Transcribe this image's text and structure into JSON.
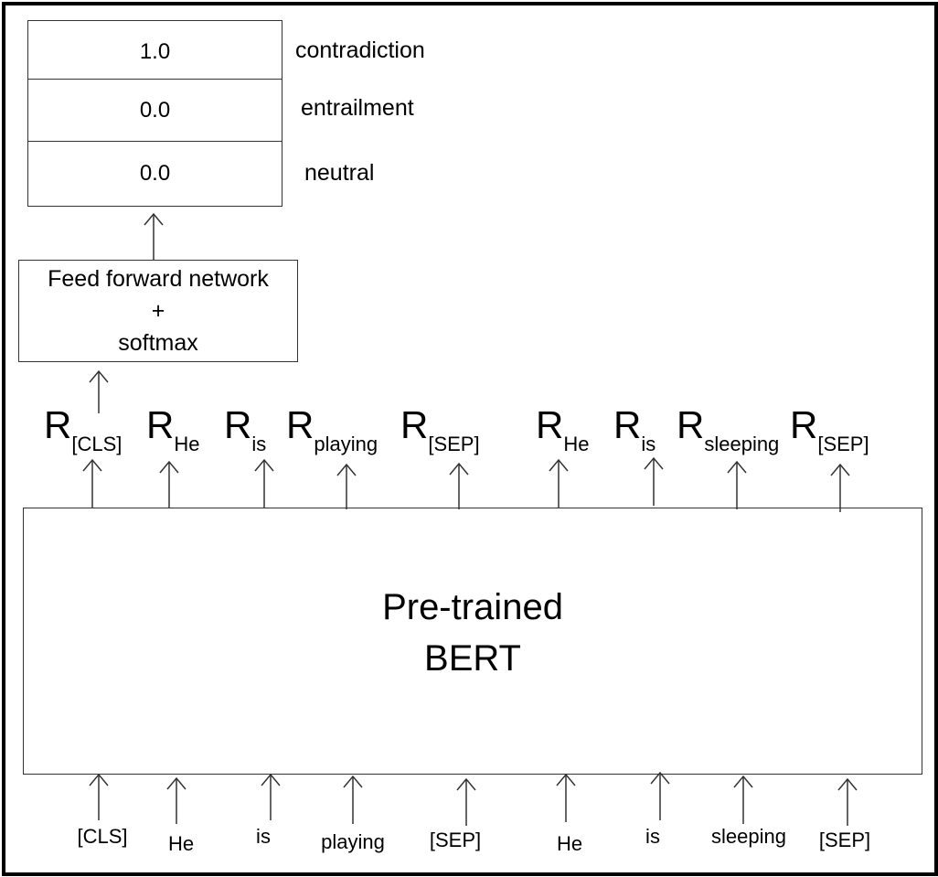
{
  "output": {
    "rows": [
      {
        "value": "1.0",
        "label": "contradiction"
      },
      {
        "value": "0.0",
        "label": "entrailment"
      },
      {
        "value": "0.0",
        "label": "neutral"
      }
    ]
  },
  "ffn": {
    "line1": "Feed forward network",
    "line2": "+",
    "line3": "softmax"
  },
  "representations": [
    {
      "base": "R",
      "sub": "[CLS]"
    },
    {
      "base": "R",
      "sub": "He"
    },
    {
      "base": "R",
      "sub": "is"
    },
    {
      "base": "R",
      "sub": "playing"
    },
    {
      "base": "R",
      "sub": "[SEP]"
    },
    {
      "base": "R",
      "sub": "He"
    },
    {
      "base": "R",
      "sub": "is"
    },
    {
      "base": "R",
      "sub": "sleeping"
    },
    {
      "base": "R",
      "sub": "[SEP]"
    }
  ],
  "bert": {
    "line1": "Pre-trained",
    "line2": "BERT"
  },
  "tokens": [
    "[CLS]",
    "He",
    "is",
    "playing",
    "[SEP]",
    "He",
    "is",
    "sleeping",
    "[SEP]"
  ]
}
